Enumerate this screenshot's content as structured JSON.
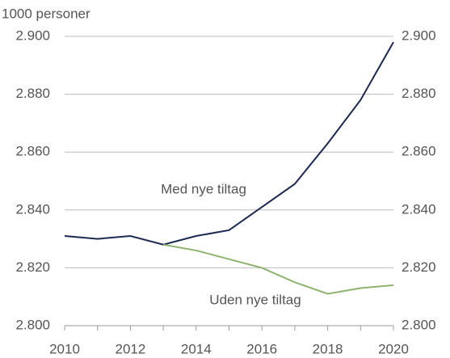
{
  "chart_data": {
    "type": "line",
    "axis_label": "1000 personer",
    "x": [
      2010,
      2011,
      2012,
      2013,
      2014,
      2015,
      2016,
      2017,
      2018,
      2019,
      2020
    ],
    "xlim": [
      2010,
      2020
    ],
    "xticks": [
      2010,
      2012,
      2014,
      2016,
      2018,
      2020
    ],
    "series": [
      {
        "name": "Med nye tiltag",
        "color": "#1c2951",
        "values": [
          2831,
          2830,
          2831,
          2828,
          2831,
          2833,
          2841,
          2849,
          2863,
          2878,
          2898
        ]
      },
      {
        "name": "Uden nye tiltag",
        "color": "#8db36e",
        "values": [
          null,
          null,
          null,
          2828,
          2826,
          2823,
          2820,
          2815,
          2811,
          2813,
          2814
        ]
      }
    ],
    "ylim": [
      2800,
      2900
    ],
    "yticks": [
      {
        "value": 2800,
        "label": "2.800"
      },
      {
        "value": 2820,
        "label": "2.820"
      },
      {
        "value": 2840,
        "label": "2.840"
      },
      {
        "value": 2860,
        "label": "2.860"
      },
      {
        "value": 2880,
        "label": "2.880"
      },
      {
        "value": 2900,
        "label": "2.900"
      }
    ],
    "y2lim": [
      2800,
      2900
    ],
    "y2ticks": [
      {
        "value": 2800,
        "label": "2.800"
      },
      {
        "value": 2820,
        "label": "2.820"
      },
      {
        "value": 2840,
        "label": "2.840"
      },
      {
        "value": 2860,
        "label": "2.860"
      },
      {
        "value": 2880,
        "label": "2.880"
      },
      {
        "value": 2900,
        "label": "2.900"
      }
    ],
    "grid": true
  }
}
